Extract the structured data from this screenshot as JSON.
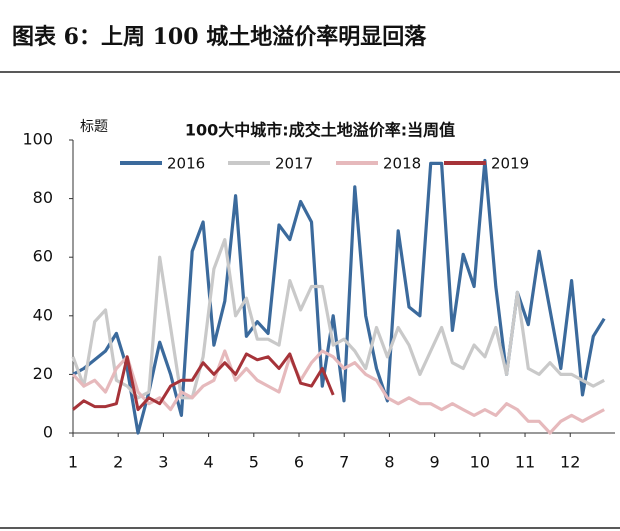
{
  "header": {
    "title": "图表 6：上周 100 城土地溢价率明显回落"
  },
  "chart_data": {
    "type": "line",
    "title": "100大中城市:成交土地溢价率:当周值",
    "y_axis_label": "标题",
    "x": [
      1,
      2,
      3,
      4,
      5,
      6,
      7,
      8,
      9,
      10,
      11,
      12,
      13,
      14,
      15,
      16,
      17,
      18,
      19,
      20,
      21,
      22,
      23,
      24,
      25,
      26,
      27,
      28,
      29,
      30,
      31,
      32,
      33,
      34,
      35,
      36,
      37,
      38,
      39,
      40,
      41,
      42,
      43,
      44,
      45,
      46,
      47,
      48,
      49,
      50
    ],
    "xlim": [
      1,
      51
    ],
    "xticks": [
      {
        "value": 1,
        "label": "1"
      },
      {
        "value": 5.17,
        "label": "2"
      },
      {
        "value": 9.34,
        "label": "3"
      },
      {
        "value": 13.51,
        "label": "4"
      },
      {
        "value": 17.68,
        "label": "5"
      },
      {
        "value": 21.85,
        "label": "6"
      },
      {
        "value": 26.02,
        "label": "7"
      },
      {
        "value": 30.19,
        "label": "8"
      },
      {
        "value": 34.36,
        "label": "9"
      },
      {
        "value": 38.53,
        "label": "10"
      },
      {
        "value": 42.7,
        "label": "11"
      },
      {
        "value": 46.87,
        "label": "12"
      }
    ],
    "ylim": [
      0,
      100
    ],
    "yticks": [
      0,
      20,
      40,
      60,
      80,
      100
    ],
    "grid": false,
    "series": [
      {
        "name": "2016",
        "color": "#3b6a9c",
        "values": [
          20,
          22,
          25,
          28,
          34,
          22,
          0,
          14,
          31,
          20,
          6,
          62,
          72,
          30,
          45,
          81,
          33,
          38,
          34,
          71,
          66,
          79,
          72,
          16,
          40,
          11,
          84,
          40,
          22,
          11,
          69,
          43,
          40,
          92,
          92,
          35,
          61,
          50,
          93,
          50,
          20,
          48,
          37,
          62,
          42,
          22,
          52,
          13,
          33,
          39
        ]
      },
      {
        "name": "2017",
        "color": "#c9c9c9",
        "values": [
          26,
          16,
          38,
          42,
          18,
          16,
          12,
          14,
          60,
          36,
          12,
          12,
          26,
          56,
          66,
          40,
          46,
          32,
          32,
          30,
          52,
          42,
          50,
          50,
          30,
          32,
          28,
          22,
          36,
          26,
          36,
          30,
          20,
          28,
          36,
          24,
          22,
          30,
          26,
          36,
          20,
          48,
          22,
          20,
          24,
          20,
          20,
          18,
          16,
          18
        ]
      },
      {
        "name": "2018",
        "color": "#e6b9bc",
        "values": [
          20,
          16,
          18,
          14,
          22,
          26,
          14,
          10,
          12,
          8,
          14,
          12,
          16,
          18,
          28,
          18,
          22,
          18,
          16,
          14,
          26,
          18,
          24,
          28,
          26,
          22,
          24,
          20,
          18,
          12,
          10,
          12,
          10,
          10,
          8,
          10,
          8,
          6,
          8,
          6,
          10,
          8,
          4,
          4,
          0,
          4,
          6,
          4,
          6,
          8
        ]
      },
      {
        "name": "2019",
        "color": "#a63339",
        "values": [
          8,
          11,
          9,
          9,
          10,
          26,
          8,
          12,
          10,
          16,
          18,
          18,
          24,
          20,
          24,
          20,
          27,
          25,
          26,
          22,
          27,
          17,
          16,
          22,
          13,
          null,
          null,
          null,
          null,
          null,
          null,
          null,
          null,
          null,
          null,
          null,
          null,
          null,
          null,
          null,
          null,
          null,
          null,
          null,
          null,
          null,
          null,
          null,
          null,
          null
        ]
      }
    ]
  }
}
